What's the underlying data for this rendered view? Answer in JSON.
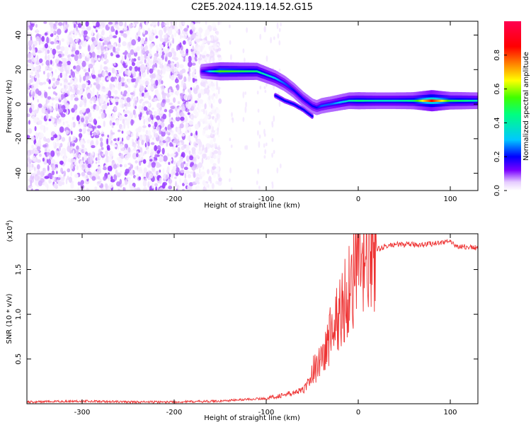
{
  "figure_title": "C2E5.2024.119.14.52.G15",
  "chart_data": [
    {
      "type": "heatmap",
      "xlabel": "Height of straight line (km)",
      "ylabel": "Frequency (Hz)",
      "xlim": [
        -360,
        130
      ],
      "ylim": [
        -50,
        48
      ],
      "x_ticks": [
        -300,
        -200,
        -100,
        0,
        100
      ],
      "y_ticks": [
        -40,
        -20,
        0,
        20,
        40
      ],
      "colorbar": {
        "label": "Normalized spectral amplitude",
        "range": [
          0,
          1
        ],
        "ticks": [
          0.0,
          0.2,
          0.4,
          0.6,
          0.8
        ],
        "colors": [
          "#ffffff",
          "#e6ccff",
          "#7a00ff",
          "#0000ff",
          "#00c8ff",
          "#00ff80",
          "#40ff00",
          "#ffff00",
          "#ff8000",
          "#ff0000",
          "#ff0050"
        ]
      },
      "noise_region_x": [
        -360,
        -160
      ],
      "signal_track": {
        "x": [
          -170,
          -150,
          -130,
          -110,
          -100,
          -90,
          -80,
          -70,
          -60,
          -50,
          -45,
          -40,
          -30,
          -20,
          -10,
          0,
          20,
          40,
          60,
          80,
          100,
          130
        ],
        "frequency": [
          19,
          19,
          19,
          19,
          17,
          15,
          12,
          8,
          3,
          -1,
          -2,
          -1,
          0,
          1,
          2,
          2,
          2,
          2,
          2,
          2,
          2,
          2
        ],
        "amplitude": [
          0.25,
          0.6,
          0.55,
          0.5,
          0.45,
          0.4,
          0.35,
          0.3,
          0.3,
          0.3,
          0.3,
          0.35,
          0.35,
          0.4,
          0.45,
          0.5,
          0.45,
          0.45,
          0.5,
          0.9,
          0.55,
          0.45
        ]
      },
      "secondary_track": {
        "x": [
          -90,
          -80,
          -70,
          -60,
          -55,
          -50
        ],
        "frequency": [
          5,
          2,
          0,
          -3,
          -5,
          -7
        ]
      }
    },
    {
      "type": "line",
      "xlabel": "Height of straight line (km)",
      "ylabel": "SNR (10 * v/v)",
      "y_multiplier_label": "(x10",
      "y_multiplier_exponent": "4",
      "y_multiplier_close": ")",
      "xlim": [
        -360,
        130
      ],
      "ylim": [
        0,
        1.9
      ],
      "x_ticks": [
        -300,
        -200,
        -100,
        0,
        100
      ],
      "y_ticks": [
        0.5,
        1.0,
        1.5
      ],
      "y_tick_labels": [
        "0.5",
        "1.0",
        "1.5"
      ],
      "color": "#ee3333",
      "series": [
        {
          "x": [
            -360,
            -300,
            -250,
            -200,
            -150,
            -120,
            -100,
            -90,
            -80,
            -70,
            -60,
            -55,
            -50,
            -45,
            -40,
            -35,
            -30,
            -25,
            -20,
            -15,
            -10,
            -5,
            0,
            5,
            10,
            15,
            20,
            25,
            30,
            35,
            40,
            50,
            60,
            70,
            80,
            90,
            95,
            100,
            105,
            110,
            120,
            130
          ],
          "y": [
            0.02,
            0.03,
            0.02,
            0.02,
            0.03,
            0.05,
            0.06,
            0.08,
            0.1,
            0.12,
            0.15,
            0.22,
            0.35,
            0.45,
            0.5,
            0.6,
            0.8,
            0.9,
            1.0,
            1.15,
            1.3,
            1.45,
            1.5,
            1.6,
            1.65,
            1.7,
            1.72,
            1.74,
            1.76,
            1.77,
            1.78,
            1.78,
            1.78,
            1.78,
            1.79,
            1.8,
            1.82,
            1.8,
            1.77,
            1.76,
            1.75,
            1.74
          ]
        }
      ]
    }
  ]
}
